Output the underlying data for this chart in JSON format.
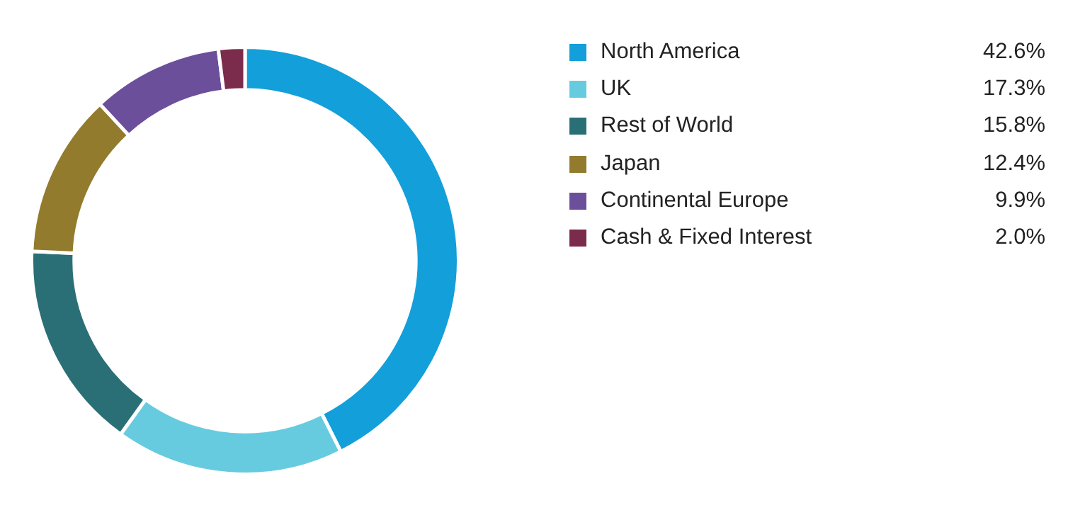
{
  "chart_data": {
    "type": "donut",
    "categories": [
      "North America",
      "UK",
      "Rest of World",
      "Japan",
      "Continental Europe",
      "Cash & Fixed Interest"
    ],
    "values": [
      42.6,
      17.3,
      15.8,
      12.4,
      9.9,
      2.0
    ],
    "value_labels": [
      "42.6%",
      "17.3%",
      "15.8%",
      "12.4%",
      "9.9%",
      "2.0%"
    ],
    "colors": [
      "#139fda",
      "#67cbe0",
      "#2a6f76",
      "#937b2d",
      "#6b4f9b",
      "#7b2b4b"
    ],
    "legend": "right"
  }
}
